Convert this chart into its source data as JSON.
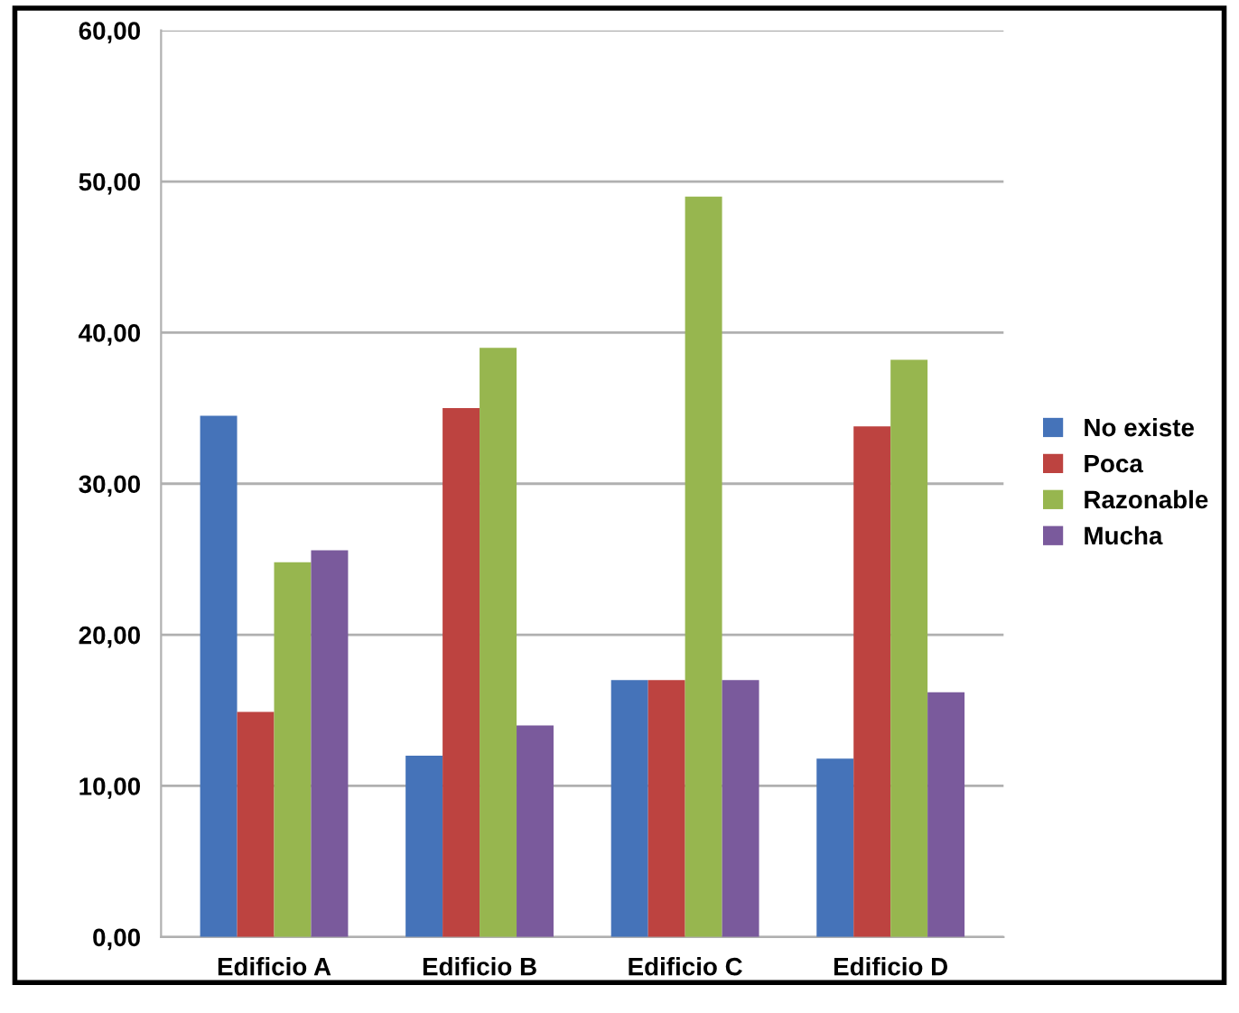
{
  "chart_data": {
    "type": "bar",
    "categories": [
      "Edificio A",
      "Edificio B",
      "Edificio C",
      "Edificio D"
    ],
    "series": [
      {
        "name": "No existe",
        "color": "#4573b9",
        "values": [
          34.5,
          12.0,
          17.0,
          11.8
        ]
      },
      {
        "name": "Poca",
        "color": "#bd4340",
        "values": [
          14.9,
          35.0,
          17.0,
          33.8
        ]
      },
      {
        "name": "Razonable",
        "color": "#97b64f",
        "values": [
          24.8,
          39.0,
          49.0,
          38.2
        ]
      },
      {
        "name": "Mucha",
        "color": "#7a5a9c",
        "values": [
          25.6,
          14.0,
          17.0,
          16.2
        ]
      }
    ],
    "ylim": [
      0,
      60
    ],
    "yticks": [
      {
        "value": 0,
        "label": "0,00"
      },
      {
        "value": 10,
        "label": "10,00"
      },
      {
        "value": 20,
        "label": "20,00"
      },
      {
        "value": 30,
        "label": "30,00"
      },
      {
        "value": 40,
        "label": "40,00"
      },
      {
        "value": 50,
        "label": "50,00"
      },
      {
        "value": 60,
        "label": "60,00"
      }
    ],
    "grid": "y",
    "legend": "right"
  }
}
